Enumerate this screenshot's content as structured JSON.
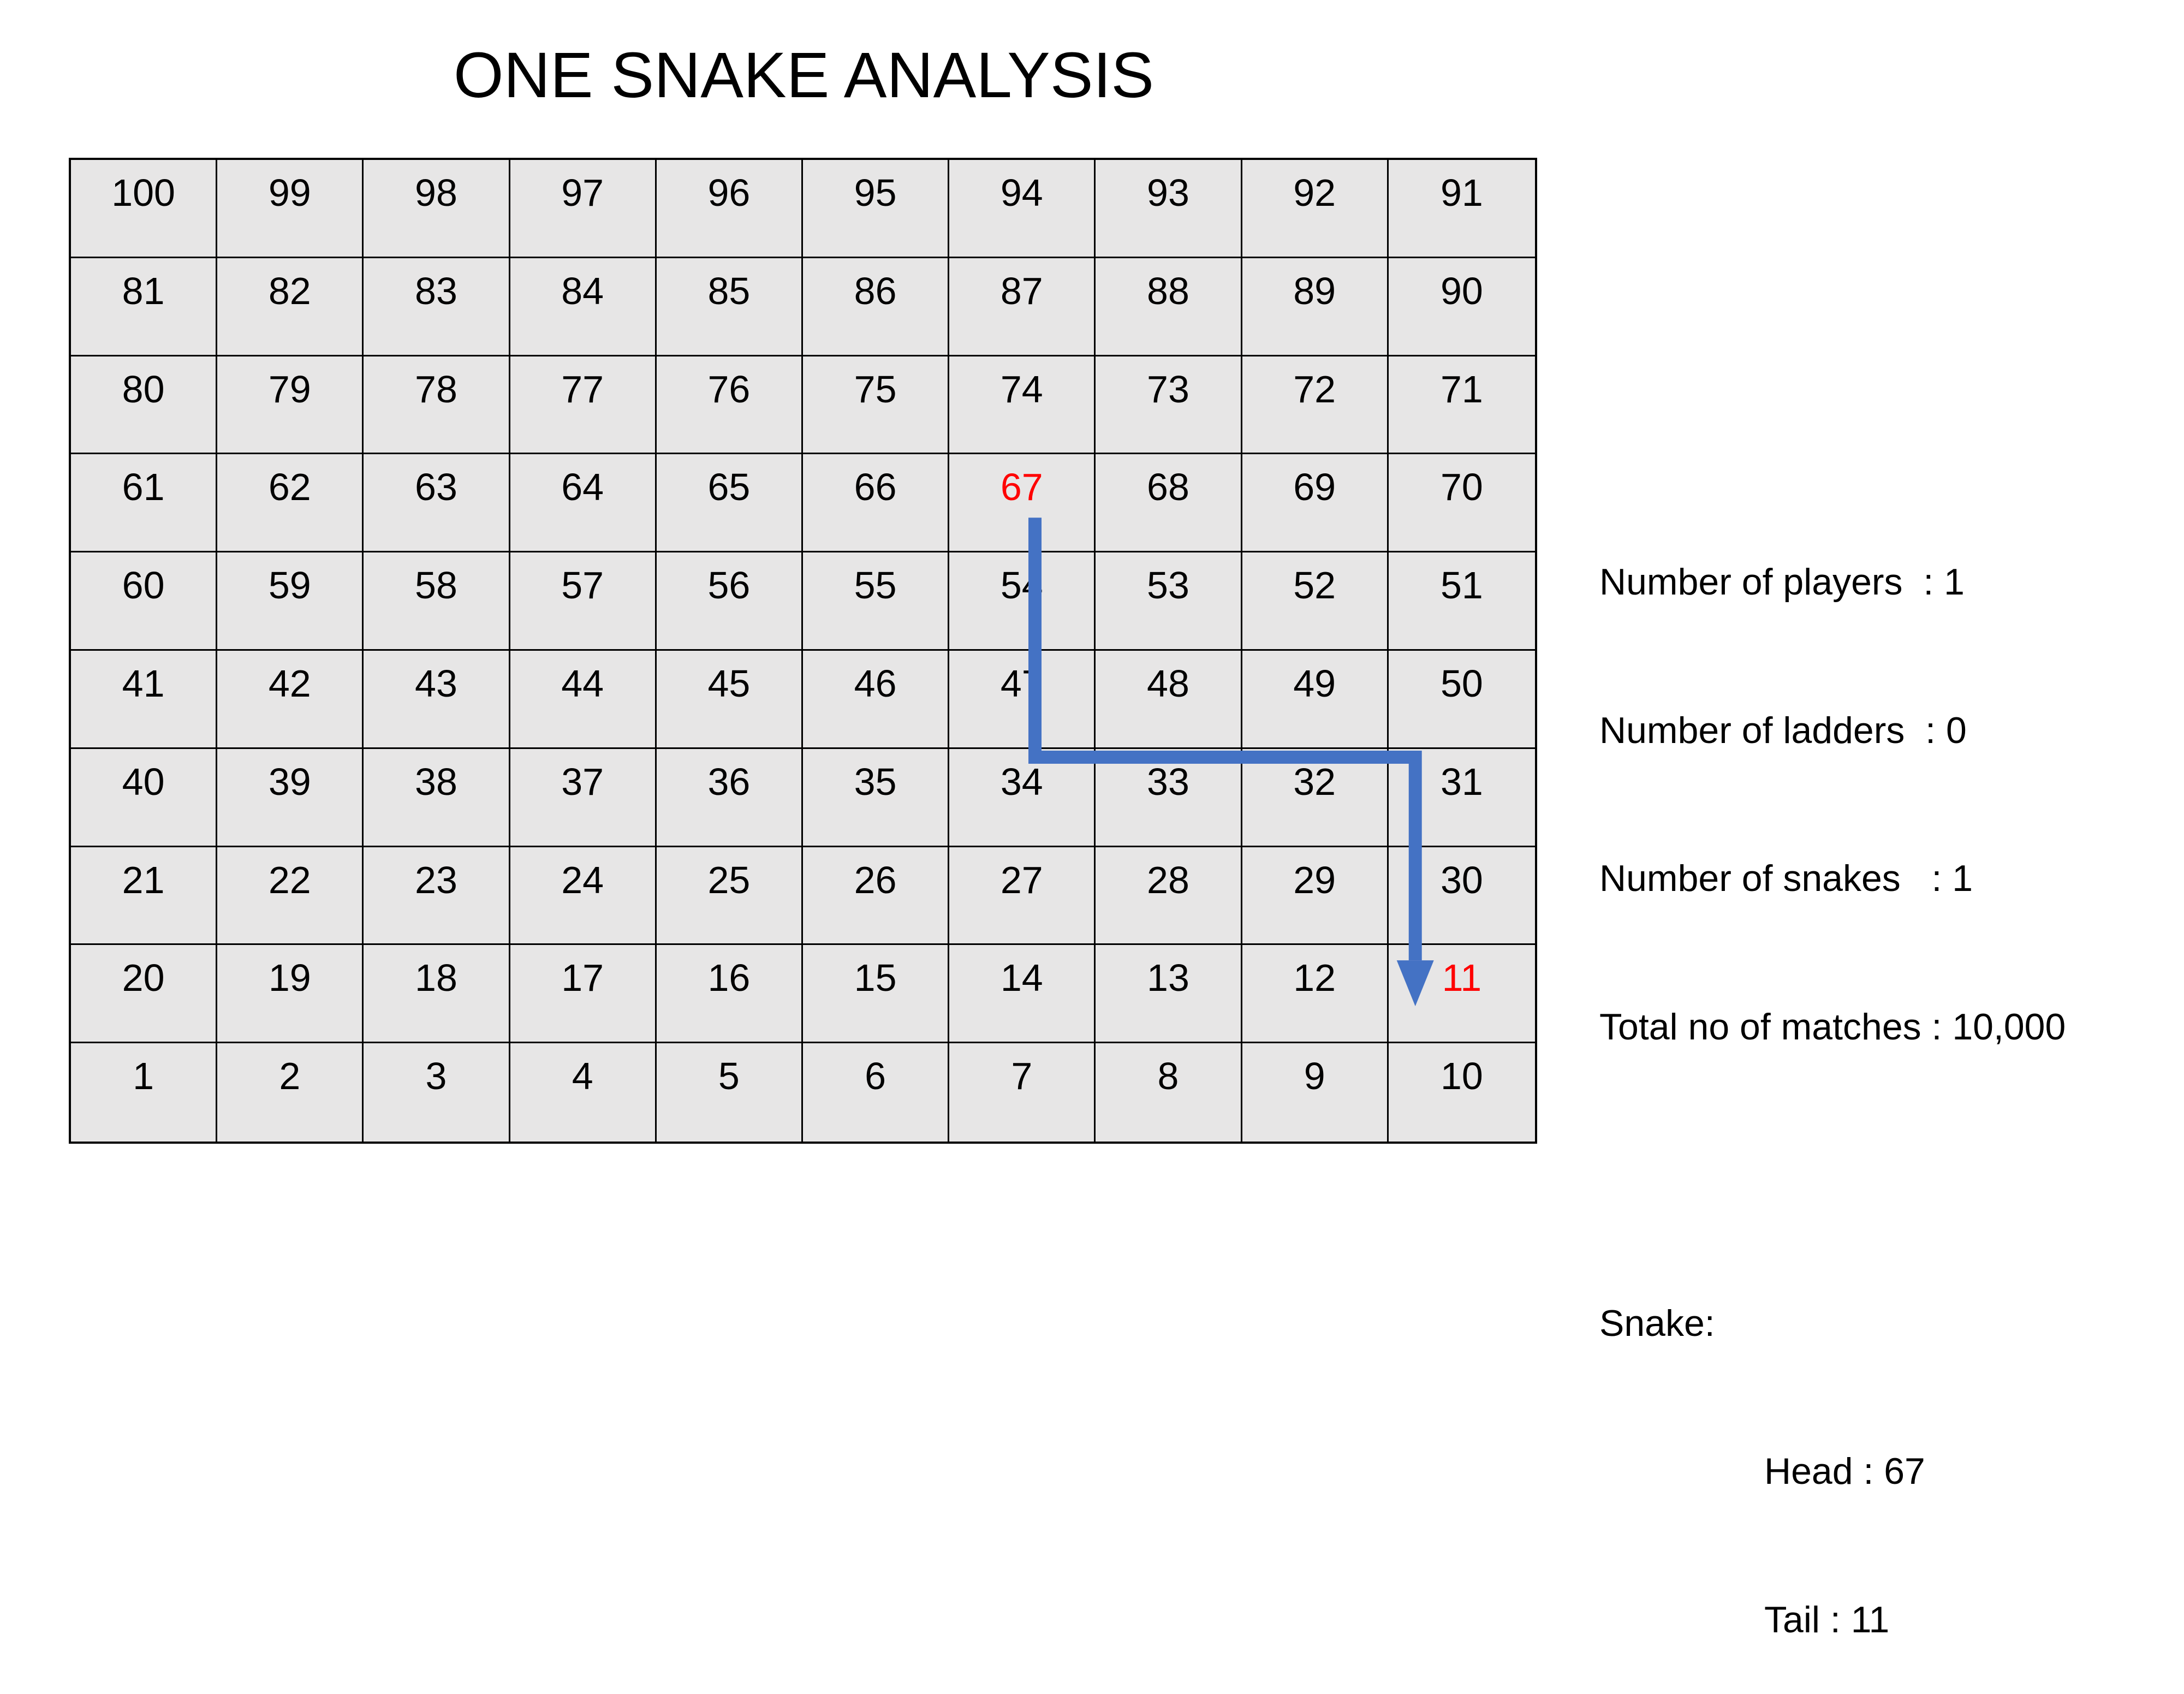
{
  "title": "ONE SNAKE ANALYSIS",
  "board": {
    "rows": [
      [
        100,
        99,
        98,
        97,
        96,
        95,
        94,
        93,
        92,
        91
      ],
      [
        81,
        82,
        83,
        84,
        85,
        86,
        87,
        88,
        89,
        90
      ],
      [
        80,
        79,
        78,
        77,
        76,
        75,
        74,
        73,
        72,
        71
      ],
      [
        61,
        62,
        63,
        64,
        65,
        66,
        67,
        68,
        69,
        70
      ],
      [
        60,
        59,
        58,
        57,
        56,
        55,
        54,
        53,
        52,
        51
      ],
      [
        41,
        42,
        43,
        44,
        45,
        46,
        47,
        48,
        49,
        50
      ],
      [
        40,
        39,
        38,
        37,
        36,
        35,
        34,
        33,
        32,
        31
      ],
      [
        21,
        22,
        23,
        24,
        25,
        26,
        27,
        28,
        29,
        30
      ],
      [
        20,
        19,
        18,
        17,
        16,
        15,
        14,
        13,
        12,
        11
      ],
      [
        1,
        2,
        3,
        4,
        5,
        6,
        7,
        8,
        9,
        10
      ]
    ],
    "cell_color": "#e7e6e6",
    "highlight_color": "#ff0000",
    "highlighted_cells": [
      67,
      11
    ]
  },
  "snake": {
    "head": 67,
    "tail": 11,
    "path_cells": [
      67,
      34,
      31,
      11
    ],
    "color": "#4472c4"
  },
  "info": {
    "players": "Number of players  : 1",
    "ladders": "Number of ladders  : 0",
    "snakes": "Number of snakes   : 1",
    "matches": "Total no of matches : 10,000",
    "snake_label": "Snake:",
    "head": "Head : 67",
    "tail": "Tail : 11"
  }
}
